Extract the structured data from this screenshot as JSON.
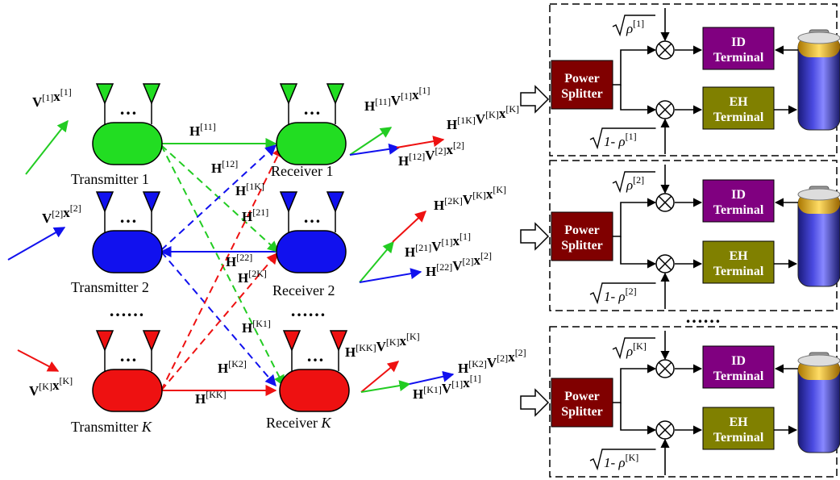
{
  "transmitters": [
    {
      "label": "Transmitter 1",
      "color": "#22dd22"
    },
    {
      "label": "Transmitter 2",
      "color": "#1111ee"
    },
    {
      "label": "Transmitter K",
      "color": "#ee1111"
    }
  ],
  "receivers": [
    {
      "label": "Receiver 1",
      "color": "#22dd22"
    },
    {
      "label": "Receiver 2",
      "color": "#1111ee"
    },
    {
      "label": "Receiver K",
      "color": "#ee1111"
    }
  ],
  "ellipsis": "……",
  "inputs": [
    {
      "label": "V[1]x[1]"
    },
    {
      "label": "V[2]x[2]"
    },
    {
      "label": "V[K]x[K]"
    }
  ],
  "channels": {
    "h11": "H[11]",
    "h12": "H[12]",
    "h1K": "H[1K]",
    "h21": "H[21]",
    "h22": "H[22]",
    "h2K": "H[2K]",
    "hK1": "H[K1]",
    "hK2": "H[K2]",
    "hKK": "H[KK]"
  },
  "received_signals": {
    "rx1": [
      "H[11]V[1]x[1]",
      "H[1K]V[K]x[K]",
      "H[12]V[2]x[2]"
    ],
    "rx2": [
      "H[2K]V[K]x[K]",
      "H[21]V[1]x[1]",
      "H[22]V[2]x[2]"
    ],
    "rxK": [
      "H[KK]V[K]x[K]",
      "H[K2]V[2]x[2]",
      "H[K1]V[1]x[1]"
    ]
  },
  "power_splitter": {
    "line1": "Power",
    "line2": "Splitter",
    "color": "#800000"
  },
  "id_terminal": {
    "line1": "ID",
    "line2": "Terminal",
    "color": "#800080"
  },
  "eh_terminal": {
    "line1": "EH",
    "line2": "Terminal",
    "color": "#808000"
  },
  "rho_top": [
    "ρ[1]",
    "ρ[2]",
    "ρ[K]"
  ],
  "rho_bottom": [
    "1- ρ[1]",
    "1- ρ[2]",
    "1- ρ[K]"
  ]
}
